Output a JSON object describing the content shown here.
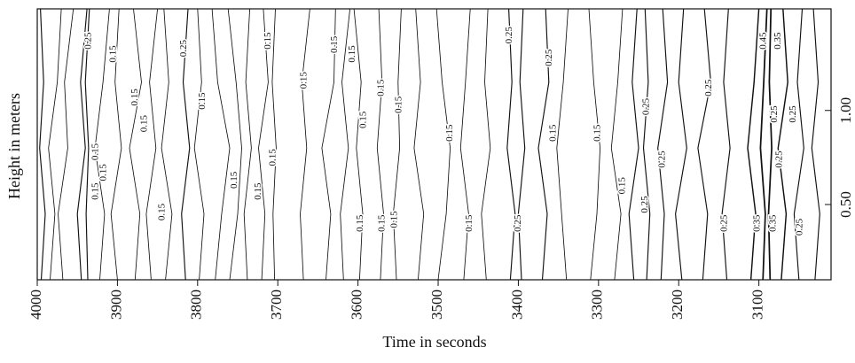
{
  "chart_data": {
    "type": "contour",
    "xlabel": "Time in seconds",
    "ylabel": "Height in meters",
    "xlim": [
      4000,
      3010
    ],
    "ylim": [
      0.1,
      1.54
    ],
    "xticks": [
      4000,
      3900,
      3800,
      3700,
      3600,
      3500,
      3400,
      3300,
      3200,
      3100
    ],
    "yticks": [
      {
        "value": 0.5,
        "label": "0.50"
      },
      {
        "value": 1,
        "label": "1.00"
      }
    ],
    "color": "#111111",
    "contours": [
      {
        "level": 0.25,
        "t": [
          3995,
          3990,
          3997,
          3992,
          3996
        ],
        "h": [
          0.1,
          0.45,
          0.8,
          1.15,
          1.54
        ]
      },
      {
        "level": 0.15,
        "t": [
          3984,
          3978,
          3986,
          3975,
          3970
        ],
        "h": [
          0.1,
          0.45,
          0.8,
          1.15,
          1.54
        ]
      },
      {
        "level": 0.15,
        "t": [
          3968,
          3974,
          3962,
          3966,
          3955
        ],
        "h": [
          0.1,
          0.45,
          0.8,
          1.15,
          1.54
        ]
      },
      {
        "level": 0.25,
        "t": [
          3945,
          3950,
          3940,
          3946,
          3938
        ],
        "h": [
          0.1,
          0.45,
          0.8,
          1.15,
          1.54
        ]
      },
      {
        "level": 0.25,
        "t": [
          3937,
          3939,
          3936,
          3940,
          3935
        ],
        "h": [
          0.1,
          0.45,
          0.8,
          1.15,
          1.54
        ]
      },
      {
        "level": 0.15,
        "t": [
          3922,
          3916,
          3928,
          3918,
          3910
        ],
        "h": [
          0.1,
          0.45,
          0.8,
          1.15,
          1.54
        ]
      },
      {
        "level": 0.15,
        "t": [
          3900,
          3908,
          3895,
          3903,
          3898
        ],
        "h": [
          0.1,
          0.45,
          0.8,
          1.15,
          1.54
        ]
      },
      {
        "level": 0.15,
        "t": [
          3878,
          3872,
          3885,
          3870,
          3880
        ],
        "h": [
          0.1,
          0.45,
          0.8,
          1.15,
          1.54
        ]
      },
      {
        "level": 0.15,
        "t": [
          3858,
          3864,
          3852,
          3860,
          3850
        ],
        "h": [
          0.1,
          0.45,
          0.8,
          1.15,
          1.54
        ]
      },
      {
        "level": 0.15,
        "t": [
          3840,
          3832,
          3845,
          3836,
          3842
        ],
        "h": [
          0.1,
          0.45,
          0.8,
          1.15,
          1.54
        ]
      },
      {
        "level": 0.25,
        "t": [
          3815,
          3820,
          3810,
          3818,
          3812
        ],
        "h": [
          0.1,
          0.45,
          0.8,
          1.15,
          1.54
        ]
      },
      {
        "level": 0.15,
        "t": [
          3798,
          3792,
          3804,
          3795,
          3800
        ],
        "h": [
          0.1,
          0.45,
          0.8,
          1.15,
          1.54
        ]
      },
      {
        "level": 0.15,
        "t": [
          3778,
          3770,
          3760,
          3775,
          3782
        ],
        "h": [
          0.1,
          0.45,
          0.8,
          1.15,
          1.54
        ]
      },
      {
        "level": 0.15,
        "t": [
          3760,
          3750,
          3745,
          3752,
          3762
        ],
        "h": [
          0.1,
          0.45,
          0.8,
          1.15,
          1.54
        ]
      },
      {
        "level": 0.15,
        "t": [
          3738,
          3742,
          3733,
          3740,
          3735
        ],
        "h": [
          0.1,
          0.45,
          0.8,
          1.15,
          1.54
        ]
      },
      {
        "level": 0.15,
        "t": [
          3720,
          3716,
          3724,
          3712,
          3718
        ],
        "h": [
          0.1,
          0.45,
          0.8,
          1.15,
          1.54
        ]
      },
      {
        "level": 0.15,
        "t": [
          3704,
          3706,
          3702,
          3707,
          3703
        ],
        "h": [
          0.1,
          0.45,
          0.8,
          1.15,
          1.54
        ]
      },
      {
        "level": 0.15,
        "t": [
          3668,
          3672,
          3664,
          3670,
          3660
        ],
        "h": [
          0.1,
          0.45,
          0.8,
          1.15,
          1.54
        ]
      },
      {
        "level": 0.15,
        "t": [
          3640,
          3634,
          3645,
          3630,
          3628
        ],
        "h": [
          0.1,
          0.45,
          0.8,
          1.15,
          1.54
        ]
      },
      {
        "level": 0.15,
        "t": [
          3618,
          3622,
          3612,
          3620,
          3610
        ],
        "h": [
          0.1,
          0.45,
          0.8,
          1.15,
          1.54
        ]
      },
      {
        "level": 0.15,
        "t": [
          3598,
          3594,
          3602,
          3596,
          3605
        ],
        "h": [
          0.1,
          0.45,
          0.8,
          1.15,
          1.54
        ]
      },
      {
        "level": 0.15,
        "t": [
          3572,
          3568,
          3576,
          3570,
          3574
        ],
        "h": [
          0.1,
          0.45,
          0.8,
          1.15,
          1.54
        ]
      },
      {
        "level": 0.15,
        "t": [
          3552,
          3556,
          3548,
          3550,
          3546
        ],
        "h": [
          0.1,
          0.45,
          0.8,
          1.15,
          1.54
        ]
      },
      {
        "level": 0.15,
        "t": [
          3525,
          3518,
          3530,
          3522,
          3528
        ],
        "h": [
          0.1,
          0.45,
          0.8,
          1.15,
          1.54
        ]
      },
      {
        "level": 0.15,
        "t": [
          3500,
          3490,
          3485,
          3495,
          3502
        ],
        "h": [
          0.1,
          0.45,
          0.8,
          1.15,
          1.54
        ]
      },
      {
        "level": 0.15,
        "t": [
          3468,
          3462,
          3472,
          3466,
          3460
        ],
        "h": [
          0.1,
          0.45,
          0.8,
          1.15,
          1.54
        ]
      },
      {
        "level": 0.15,
        "t": [
          3440,
          3446,
          3435,
          3442,
          3438
        ],
        "h": [
          0.1,
          0.45,
          0.8,
          1.15,
          1.54
        ]
      },
      {
        "level": 0.25,
        "t": [
          3410,
          3404,
          3414,
          3408,
          3412
        ],
        "h": [
          0.1,
          0.45,
          0.8,
          1.15,
          1.54
        ]
      },
      {
        "level": 0.25,
        "t": [
          3396,
          3400,
          3392,
          3398,
          3394
        ],
        "h": [
          0.1,
          0.45,
          0.8,
          1.15,
          1.54
        ]
      },
      {
        "level": 0.25,
        "t": [
          3370,
          3364,
          3375,
          3362,
          3366
        ],
        "h": [
          0.1,
          0.45,
          0.8,
          1.15,
          1.54
        ]
      },
      {
        "level": 0.15,
        "t": [
          3340,
          3346,
          3352,
          3344,
          3338
        ],
        "h": [
          0.1,
          0.45,
          0.8,
          1.15,
          1.54
        ]
      },
      {
        "level": 0.15,
        "t": [
          3310,
          3302,
          3298,
          3306,
          3312
        ],
        "h": [
          0.1,
          0.45,
          0.8,
          1.15,
          1.54
        ]
      },
      {
        "level": 0.15,
        "t": [
          3280,
          3272,
          3284,
          3276,
          3270
        ],
        "h": [
          0.1,
          0.45,
          0.8,
          1.15,
          1.54
        ]
      },
      {
        "level": 0.25,
        "t": [
          3256,
          3262,
          3250,
          3258,
          3252
        ],
        "h": [
          0.1,
          0.45,
          0.8,
          1.15,
          1.54
        ]
      },
      {
        "level": 0.25,
        "t": [
          3240,
          3236,
          3244,
          3238,
          3242
        ],
        "h": [
          0.1,
          0.45,
          0.8,
          1.15,
          1.54
        ]
      },
      {
        "level": 0.25,
        "t": [
          3222,
          3218,
          3226,
          3214,
          3220
        ],
        "h": [
          0.1,
          0.45,
          0.8,
          1.15,
          1.54
        ]
      },
      {
        "level": 0.25,
        "t": [
          3196,
          3204,
          3190,
          3200,
          3194
        ],
        "h": [
          0.1,
          0.45,
          0.8,
          1.15,
          1.54
        ]
      },
      {
        "level": 0.25,
        "t": [
          3170,
          3164,
          3176,
          3160,
          3168
        ],
        "h": [
          0.1,
          0.45,
          0.8,
          1.15,
          1.54
        ]
      },
      {
        "level": 0.25,
        "t": [
          3140,
          3146,
          3136,
          3144,
          3138
        ],
        "h": [
          0.1,
          0.45,
          0.8,
          1.15,
          1.54
        ]
      },
      {
        "level": 0.35,
        "t": [
          3110,
          3104,
          3114,
          3106,
          3100
        ],
        "h": [
          0.1,
          0.45,
          0.8,
          1.15,
          1.54
        ]
      },
      {
        "level": 0.45,
        "t": [
          3095,
          3092,
          3098,
          3094,
          3090
        ],
        "h": [
          0.1,
          0.45,
          0.8,
          1.15,
          1.54
        ]
      },
      {
        "level": 0.45,
        "t": [
          3086,
          3088,
          3084,
          3087,
          3085
        ],
        "h": [
          0.1,
          0.45,
          0.8,
          1.15,
          1.54
        ]
      },
      {
        "level": 0.35,
        "t": [
          3072,
          3066,
          3076,
          3064,
          3070
        ],
        "h": [
          0.1,
          0.45,
          0.8,
          1.15,
          1.54
        ]
      },
      {
        "level": 0.25,
        "t": [
          3050,
          3056,
          3044,
          3052,
          3046
        ],
        "h": [
          0.1,
          0.45,
          0.8,
          1.15,
          1.54
        ]
      },
      {
        "level": 0.25,
        "t": [
          3030,
          3024,
          3034,
          3026,
          3032
        ],
        "h": [
          0.1,
          0.45,
          0.8,
          1.15,
          1.54
        ]
      }
    ],
    "contour_labels": [
      {
        "t": 3936,
        "h": 1.37,
        "level": 0.25
      },
      {
        "t": 3905,
        "h": 1.3,
        "level": 0.15
      },
      {
        "t": 3817,
        "h": 1.33,
        "level": 0.25
      },
      {
        "t": 3712,
        "h": 1.37,
        "level": 0.15
      },
      {
        "t": 3878,
        "h": 1.07,
        "level": 0.15
      },
      {
        "t": 3866,
        "h": 0.93,
        "level": 0.15
      },
      {
        "t": 3794,
        "h": 1.05,
        "level": 0.15
      },
      {
        "t": 3927,
        "h": 0.78,
        "level": 0.15
      },
      {
        "t": 3917,
        "h": 0.67,
        "level": 0.15
      },
      {
        "t": 3927,
        "h": 0.57,
        "level": 0.15
      },
      {
        "t": 3844,
        "h": 0.46,
        "level": 0.15
      },
      {
        "t": 3754,
        "h": 0.63,
        "level": 0.15
      },
      {
        "t": 3724,
        "h": 0.57,
        "level": 0.15
      },
      {
        "t": 3706,
        "h": 0.75,
        "level": 0.15
      },
      {
        "t": 3667,
        "h": 1.16,
        "level": 0.15
      },
      {
        "t": 3629,
        "h": 1.35,
        "level": 0.15
      },
      {
        "t": 3607,
        "h": 1.3,
        "level": 0.15
      },
      {
        "t": 3593,
        "h": 0.95,
        "level": 0.15
      },
      {
        "t": 3571,
        "h": 1.12,
        "level": 0.15
      },
      {
        "t": 3549,
        "h": 1.03,
        "level": 0.15
      },
      {
        "t": 3485,
        "h": 0.88,
        "level": 0.15
      },
      {
        "t": 3597,
        "h": 0.4,
        "level": 0.15
      },
      {
        "t": 3570,
        "h": 0.4,
        "level": 0.15
      },
      {
        "t": 3554,
        "h": 0.42,
        "level": 0.15
      },
      {
        "t": 3461,
        "h": 0.4,
        "level": 0.15
      },
      {
        "t": 3411,
        "h": 1.4,
        "level": 0.25
      },
      {
        "t": 3361,
        "h": 1.28,
        "level": 0.25
      },
      {
        "t": 3356,
        "h": 0.88,
        "level": 0.15
      },
      {
        "t": 3301,
        "h": 0.88,
        "level": 0.15
      },
      {
        "t": 3400,
        "h": 0.4,
        "level": 0.25
      },
      {
        "t": 3270,
        "h": 0.6,
        "level": 0.15
      },
      {
        "t": 3242,
        "h": 0.5,
        "level": 0.25
      },
      {
        "t": 3220,
        "h": 0.74,
        "level": 0.25
      },
      {
        "t": 3240,
        "h": 1.02,
        "level": 0.25
      },
      {
        "t": 3162,
        "h": 1.12,
        "level": 0.25
      },
      {
        "t": 3080,
        "h": 0.98,
        "level": 0.25
      },
      {
        "t": 3057,
        "h": 0.98,
        "level": 0.25
      },
      {
        "t": 3074,
        "h": 0.74,
        "level": 0.25
      },
      {
        "t": 3143,
        "h": 0.4,
        "level": 0.25
      },
      {
        "t": 3102,
        "h": 0.4,
        "level": 0.35
      },
      {
        "t": 3082,
        "h": 0.4,
        "level": 0.35
      },
      {
        "t": 3049,
        "h": 0.38,
        "level": 0.25
      },
      {
        "t": 3094,
        "h": 1.37,
        "level": 0.45
      },
      {
        "t": 3076,
        "h": 1.37,
        "level": 0.35
      }
    ]
  }
}
